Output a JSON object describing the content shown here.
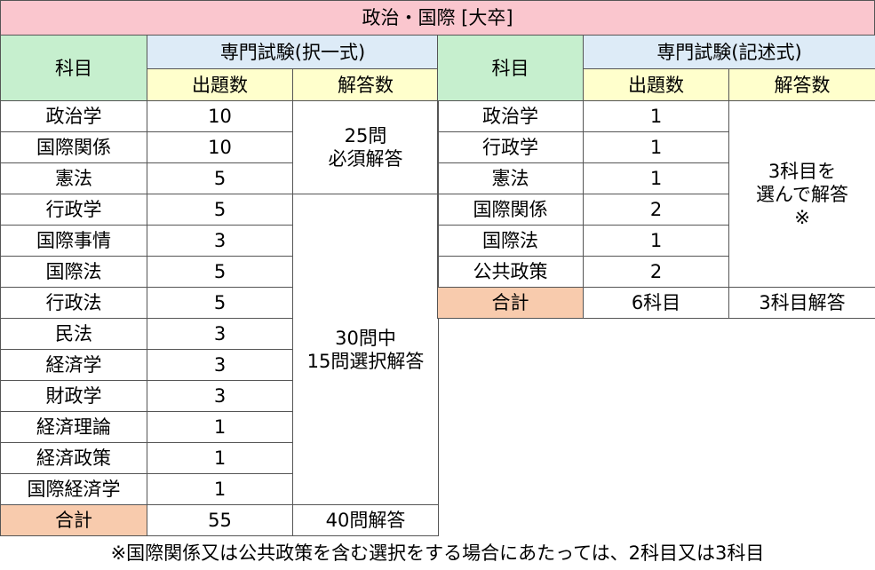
{
  "title": "政治・国際 [大卒]",
  "left": {
    "header": {
      "subject": "科目",
      "exam": "専門試験(択一式)",
      "count": "出題数",
      "answer": "解答数"
    },
    "rows": [
      [
        "政治学",
        "10"
      ],
      [
        "国際関係",
        "10"
      ],
      [
        "憲法",
        "5"
      ],
      [
        "行政学",
        "5"
      ],
      [
        "国際事情",
        "3"
      ],
      [
        "国際法",
        "5"
      ],
      [
        "行政法",
        "5"
      ],
      [
        "民法",
        "3"
      ],
      [
        "経済学",
        "3"
      ],
      [
        "財政学",
        "3"
      ],
      [
        "経済理論",
        "1"
      ],
      [
        "経済政策",
        "1"
      ],
      [
        "国際経済学",
        "1"
      ]
    ],
    "answers": [
      [
        "25問",
        "必須解答"
      ],
      [
        "30問中",
        "15問選択解答"
      ]
    ],
    "total": [
      "合計",
      "55",
      "40問解答"
    ]
  },
  "right": {
    "header": {
      "subject": "科目",
      "exam": "専門試験(記述式)",
      "count": "出題数",
      "answer": "解答数"
    },
    "rows": [
      [
        "政治学",
        "1"
      ],
      [
        "行政学",
        "1"
      ],
      [
        "憲法",
        "1"
      ],
      [
        "国際関係",
        "2"
      ],
      [
        "国際法",
        "1"
      ],
      [
        "公共政策",
        "2"
      ]
    ],
    "answers": [
      [
        "3科目を",
        "選んで解答",
        "※"
      ]
    ],
    "total": [
      "合計",
      "6科目",
      "3科目解答"
    ]
  },
  "note": "※国際関係又は公共政策を含む選択をする場合にあたっては、2科目又は3科目"
}
